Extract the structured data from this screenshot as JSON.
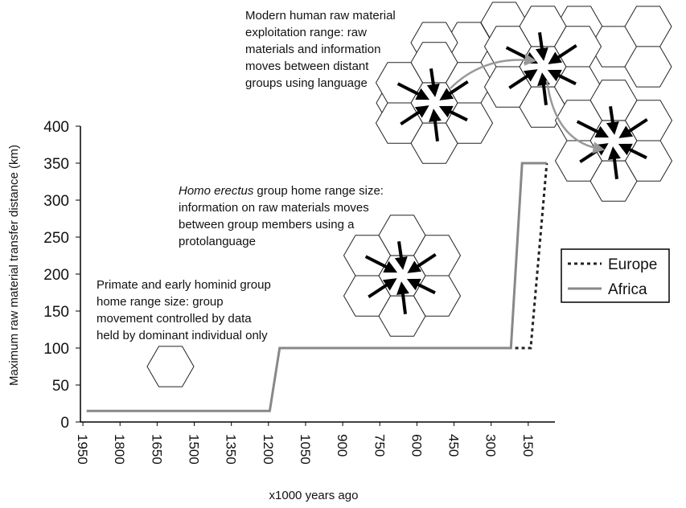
{
  "chart_data": {
    "type": "line",
    "xlabel": "x1000 years ago",
    "ylabel": "Maximum raw material transfer distance (km)",
    "xlim": [
      1960,
      0
    ],
    "ylim": [
      0,
      400
    ],
    "xticks": [
      1950,
      1800,
      1650,
      1500,
      1350,
      1200,
      1050,
      900,
      750,
      600,
      450,
      300,
      150
    ],
    "yticks": [
      0,
      50,
      100,
      150,
      200,
      250,
      300,
      350,
      400
    ],
    "legend": "right",
    "series": [
      {
        "name": "Europe",
        "color": "#222222",
        "line_style": "dotted",
        "x": [
          515,
          140,
          75
        ],
        "values": [
          100,
          100,
          350
        ]
      },
      {
        "name": "Africa",
        "color": "#888888",
        "line_style": "solid",
        "x": [
          1935,
          1195,
          1155,
          220,
          175,
          75
        ],
        "values": [
          15,
          15,
          100,
          100,
          350,
          350
        ]
      }
    ],
    "annotations": [
      {
        "lines": [
          "Primate and early hominid group",
          "home range size: group",
          "movement controlled by data",
          "held by dominant individual only"
        ]
      },
      {
        "emphasis": "Homo erectus",
        "lines": [
          "group home range size:",
          "information on raw materials moves",
          "between group members using a",
          "protolanguage"
        ]
      },
      {
        "lines": [
          "Modern human raw material",
          "exploitation range: raw",
          "materials and information",
          "moves between distant",
          "groups using language"
        ]
      }
    ]
  }
}
